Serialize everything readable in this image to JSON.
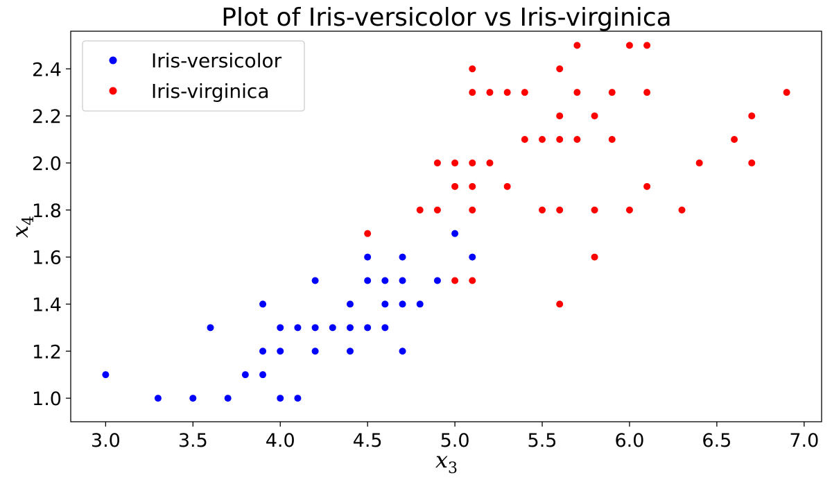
{
  "chart_data": {
    "type": "scatter",
    "title": "Plot of Iris-versicolor vs Iris-virginica",
    "xlabel": "x",
    "xlabel_sub": "3",
    "ylabel": "x",
    "ylabel_sub": "4",
    "xlim": [
      2.8,
      7.1
    ],
    "ylim": [
      0.9,
      2.56
    ],
    "xticks": [
      "3.0",
      "3.5",
      "4.0",
      "4.5",
      "5.0",
      "5.5",
      "6.0",
      "6.5",
      "7.0"
    ],
    "yticks": [
      "1.0",
      "1.2",
      "1.4",
      "1.6",
      "1.8",
      "2.0",
      "2.2",
      "2.4"
    ],
    "grid": false,
    "legend_position": "top-left",
    "series": [
      {
        "name": "Iris-versicolor",
        "color": "#0000ff",
        "points": [
          [
            3.0,
            1.1
          ],
          [
            3.3,
            1.0
          ],
          [
            3.5,
            1.0
          ],
          [
            3.6,
            1.3
          ],
          [
            3.7,
            1.0
          ],
          [
            3.8,
            1.1
          ],
          [
            3.9,
            1.1
          ],
          [
            3.9,
            1.2
          ],
          [
            3.9,
            1.4
          ],
          [
            4.0,
            1.0
          ],
          [
            4.0,
            1.2
          ],
          [
            4.0,
            1.3
          ],
          [
            4.1,
            1.0
          ],
          [
            4.1,
            1.3
          ],
          [
            4.2,
            1.2
          ],
          [
            4.2,
            1.3
          ],
          [
            4.2,
            1.5
          ],
          [
            4.3,
            1.3
          ],
          [
            4.4,
            1.2
          ],
          [
            4.4,
            1.3
          ],
          [
            4.4,
            1.4
          ],
          [
            4.5,
            1.3
          ],
          [
            4.5,
            1.5
          ],
          [
            4.5,
            1.6
          ],
          [
            4.6,
            1.3
          ],
          [
            4.6,
            1.4
          ],
          [
            4.6,
            1.5
          ],
          [
            4.7,
            1.2
          ],
          [
            4.7,
            1.4
          ],
          [
            4.7,
            1.5
          ],
          [
            4.7,
            1.6
          ],
          [
            4.8,
            1.4
          ],
          [
            4.9,
            1.5
          ],
          [
            5.0,
            1.7
          ],
          [
            5.1,
            1.6
          ]
        ]
      },
      {
        "name": "Iris-virginica",
        "color": "#ff0000",
        "points": [
          [
            4.5,
            1.7
          ],
          [
            4.8,
            1.8
          ],
          [
            4.9,
            1.8
          ],
          [
            4.9,
            2.0
          ],
          [
            5.0,
            1.5
          ],
          [
            5.0,
            1.9
          ],
          [
            5.0,
            2.0
          ],
          [
            5.1,
            1.5
          ],
          [
            5.1,
            1.8
          ],
          [
            5.1,
            1.9
          ],
          [
            5.1,
            2.0
          ],
          [
            5.1,
            2.3
          ],
          [
            5.1,
            2.4
          ],
          [
            5.2,
            2.0
          ],
          [
            5.2,
            2.3
          ],
          [
            5.3,
            1.9
          ],
          [
            5.3,
            2.3
          ],
          [
            5.4,
            2.1
          ],
          [
            5.4,
            2.3
          ],
          [
            5.5,
            1.8
          ],
          [
            5.5,
            2.1
          ],
          [
            5.6,
            1.4
          ],
          [
            5.6,
            1.8
          ],
          [
            5.6,
            2.1
          ],
          [
            5.6,
            2.2
          ],
          [
            5.6,
            2.4
          ],
          [
            5.7,
            2.1
          ],
          [
            5.7,
            2.3
          ],
          [
            5.7,
            2.5
          ],
          [
            5.8,
            1.6
          ],
          [
            5.8,
            1.8
          ],
          [
            5.8,
            2.2
          ],
          [
            5.9,
            2.1
          ],
          [
            5.9,
            2.3
          ],
          [
            6.0,
            1.8
          ],
          [
            6.0,
            2.5
          ],
          [
            6.1,
            1.9
          ],
          [
            6.1,
            2.3
          ],
          [
            6.1,
            2.5
          ],
          [
            6.3,
            1.8
          ],
          [
            6.4,
            2.0
          ],
          [
            6.6,
            2.1
          ],
          [
            6.7,
            2.0
          ],
          [
            6.7,
            2.2
          ],
          [
            6.9,
            2.3
          ]
        ]
      }
    ]
  }
}
